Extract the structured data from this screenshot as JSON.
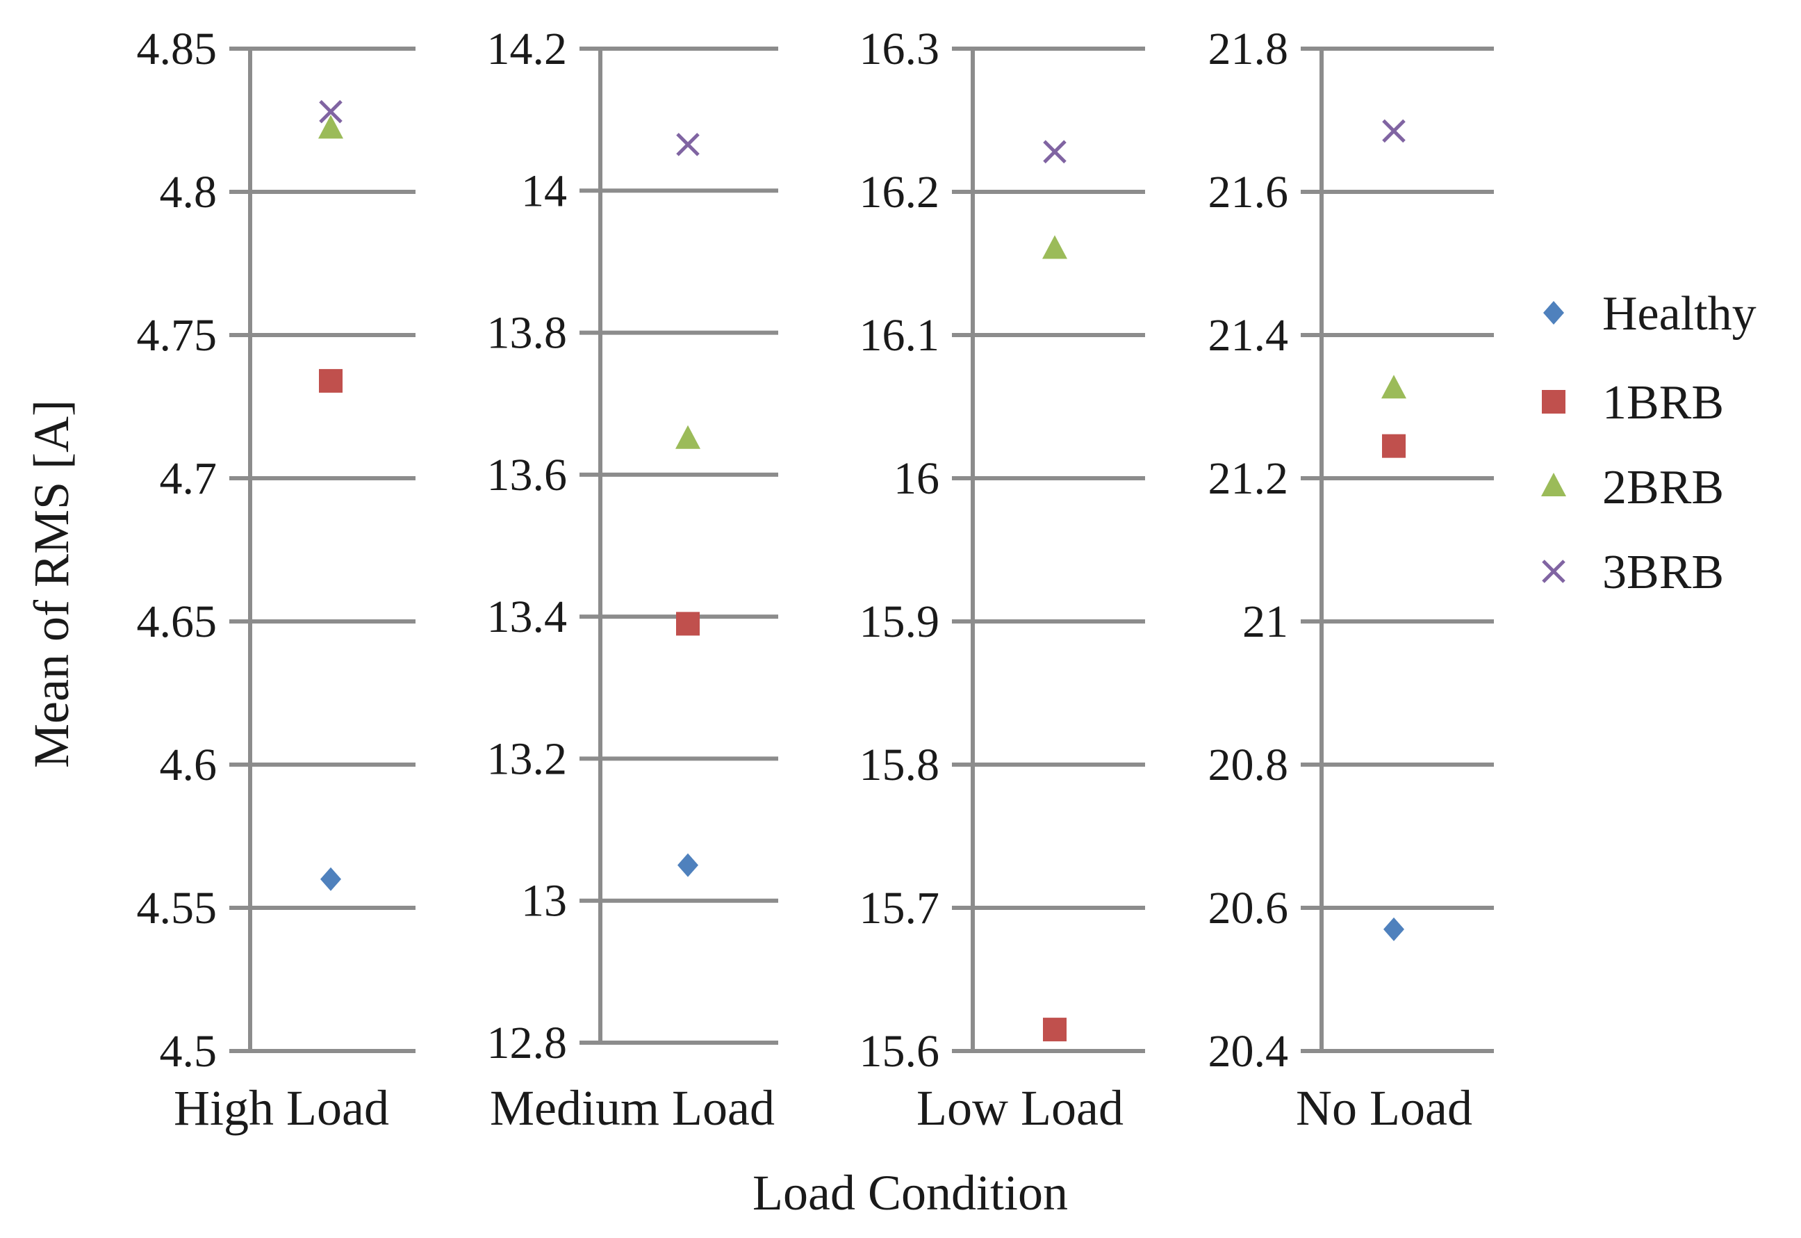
{
  "chart_data": {
    "type": "scatter",
    "xlabel": "Load Condition",
    "ylabel": "Mean of RMS [A]",
    "legend_position": "right",
    "grid": true,
    "legend": [
      {
        "name": "Healthy",
        "marker": "diamond",
        "color": "#4f81bd"
      },
      {
        "name": "1BRB",
        "marker": "square",
        "color": "#c0504d"
      },
      {
        "name": "2BRB",
        "marker": "triangle",
        "color": "#9bbb59"
      },
      {
        "name": "3BRB",
        "marker": "x",
        "color": "#8064a2"
      }
    ],
    "panels": [
      {
        "label": "High Load",
        "ylim": [
          4.5,
          4.85
        ],
        "ticks": [
          "4.85",
          "4.8",
          "4.75",
          "4.7",
          "4.65",
          "4.6",
          "4.55",
          "4.5"
        ],
        "values": {
          "Healthy": 4.56,
          "1BRB": 4.734,
          "2BRB": 4.822,
          "3BRB": 4.828
        }
      },
      {
        "label": "Medium Load",
        "ylim": [
          12.8,
          14.2
        ],
        "ticks": [
          "14.2",
          "14",
          "13.8",
          "13.6",
          "13.4",
          "13.2",
          "13",
          "12.8"
        ],
        "values": {
          "Healthy": 13.05,
          "1BRB": 13.39,
          "2BRB": 13.65,
          "3BRB": 14.065
        }
      },
      {
        "label": "Low Load",
        "ylim": [
          15.6,
          16.3
        ],
        "ticks": [
          "16.3",
          "16.2",
          "16.1",
          "16",
          "15.9",
          "15.8",
          "15.7",
          "15.6"
        ],
        "values": {
          "Healthy": null,
          "1BRB": 15.615,
          "2BRB": 16.16,
          "3BRB": 16.228
        }
      },
      {
        "label": "No Load",
        "ylim": [
          20.4,
          21.8
        ],
        "ticks": [
          "21.8",
          "21.6",
          "21.4",
          "21.2",
          "21",
          "20.8",
          "20.6",
          "20.4"
        ],
        "values": {
          "Healthy": 20.57,
          "1BRB": 21.245,
          "2BRB": 21.325,
          "3BRB": 21.685
        }
      }
    ]
  }
}
